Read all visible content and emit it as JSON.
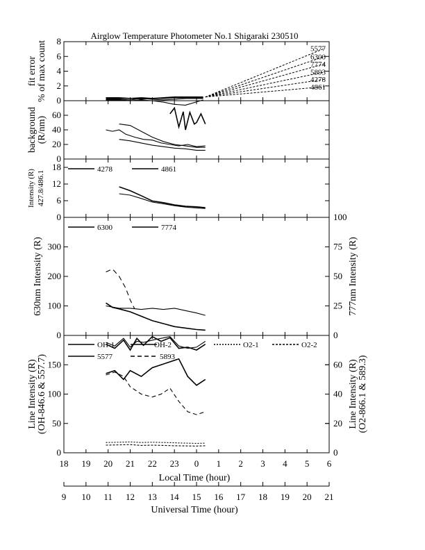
{
  "title": "Airglow Temperature Photometer No.1  Shigaraki  230510",
  "x_axes": {
    "local": {
      "label": "Local Time (hour)",
      "ticks": [
        "18",
        "19",
        "20",
        "21",
        "22",
        "23",
        "0",
        "1",
        "2",
        "3",
        "4",
        "5",
        "6"
      ]
    },
    "universal": {
      "label": "Universal Time (hour)",
      "ticks": [
        "9",
        "10",
        "11",
        "12",
        "13",
        "14",
        "15",
        "16",
        "17",
        "18",
        "19",
        "20",
        "21"
      ]
    }
  },
  "chart_data": [
    {
      "type": "line",
      "panel": "fit-error",
      "ylabel": [
        "fit error",
        "% of max count"
      ],
      "ylim": [
        0,
        8
      ],
      "yticks": [
        "0",
        "2",
        "4",
        "6",
        "8"
      ],
      "xlim_local": [
        18,
        30
      ],
      "annotations": [
        "5577",
        "6300",
        "7774",
        "5893",
        "4278",
        "4861"
      ],
      "extrapolation_targets": [
        {
          "name": "5577",
          "x": 29.8,
          "y": 7.1
        },
        {
          "name": "6300",
          "x": 29.8,
          "y": 6.0
        },
        {
          "name": "7774",
          "x": 29.8,
          "y": 5.0
        },
        {
          "name": "5893",
          "x": 29.8,
          "y": 3.9
        },
        {
          "name": "4278",
          "x": 29.8,
          "y": 2.9
        },
        {
          "name": "4861",
          "x": 29.8,
          "y": 1.9
        }
      ],
      "series": [
        {
          "x": [
            19.9,
            20.5,
            21.0,
            21.5,
            22.0,
            22.5,
            23.0,
            23.5,
            24.3
          ],
          "y": [
            0.4,
            0.4,
            0.3,
            0.4,
            0.3,
            0.4,
            0.5,
            0.5,
            0.5
          ]
        },
        {
          "x": [
            19.9,
            20.5,
            21.0,
            21.5,
            22.0,
            22.5,
            23.0,
            23.5,
            24.3
          ],
          "y": [
            0.2,
            0.2,
            0.1,
            0.3,
            0.2,
            0.1,
            0.2,
            0.3,
            0.3
          ]
        },
        {
          "x": [
            19.9,
            20.5,
            21.0,
            21.5,
            22.0,
            22.5,
            23.0,
            23.5,
            24.3
          ],
          "y": [
            0.1,
            0.1,
            0.0,
            0.1,
            0.0,
            -0.2,
            -0.5,
            -0.6,
            0.1
          ]
        },
        {
          "x": [
            19.9,
            20.5,
            21.0,
            21.5,
            22.0,
            22.5,
            23.0,
            23.5,
            24.3
          ],
          "y": [
            0.3,
            0.3,
            0.3,
            0.2,
            0.3,
            0.3,
            0.4,
            0.4,
            0.4
          ]
        }
      ]
    },
    {
      "type": "line",
      "panel": "background",
      "ylabel": [
        "background",
        "(R/nm)"
      ],
      "ylim": [
        0,
        80
      ],
      "yticks": [
        "0",
        "20",
        "40",
        "60"
      ],
      "series": [
        {
          "x": [
            22.8,
            23.0,
            23.2,
            23.4,
            23.5,
            23.7,
            23.9,
            24.0,
            24.2,
            24.4
          ],
          "y": [
            62,
            70,
            44,
            65,
            40,
            64,
            48,
            50,
            62,
            48
          ]
        },
        {
          "x": [
            19.9,
            20.2,
            20.5,
            20.8,
            21.2,
            21.6,
            22.0,
            22.4,
            22.8,
            23.2,
            23.6,
            24.0,
            24.4
          ],
          "y": [
            40,
            38,
            40,
            34,
            30,
            27,
            26,
            22,
            20,
            18,
            20,
            17,
            18
          ]
        },
        {
          "x": [
            20.5,
            21.0,
            21.5,
            22.0,
            22.5,
            23.0,
            23.5,
            24.0,
            24.4
          ],
          "y": [
            48,
            46,
            38,
            30,
            24,
            20,
            18,
            16,
            16
          ]
        },
        {
          "x": [
            20.5,
            21.0,
            21.5,
            22.0,
            22.5,
            23.0,
            23.5,
            24.0,
            24.4
          ],
          "y": [
            27,
            25,
            22,
            19,
            17,
            15,
            14,
            12,
            12
          ]
        }
      ]
    },
    {
      "type": "line",
      "panel": "427.8/486.1",
      "ylabel": [
        "Intensity (R)",
        "427.8/486.1"
      ],
      "ylim": [
        0,
        21
      ],
      "yticks": [
        "0",
        "6",
        "12",
        "18"
      ],
      "legend": [
        "4278",
        "4861"
      ],
      "series": [
        {
          "name": "4278",
          "x": [
            20.5,
            21.0,
            21.5,
            22.0,
            22.5,
            23.0,
            23.5,
            24.0,
            24.4
          ],
          "y": [
            11,
            9.6,
            7.8,
            5.9,
            5.3,
            4.5,
            4.0,
            3.8,
            3.5
          ]
        },
        {
          "name": "4861",
          "x": [
            20.5,
            21.0,
            21.5,
            22.0,
            22.5,
            23.0,
            23.5,
            24.0,
            24.4
          ],
          "y": [
            8.5,
            8.0,
            6.8,
            5.5,
            4.9,
            4.2,
            3.7,
            3.4,
            3.2
          ]
        }
      ]
    },
    {
      "type": "line",
      "panel": "630/777",
      "ylabel": "630nm Intensity (R)",
      "ylabel_right": "777nm Intensity (R)",
      "ylim": [
        0,
        400
      ],
      "ylim_right": [
        0,
        100
      ],
      "yticks": [
        "0",
        "100",
        "200",
        "300"
      ],
      "yticks_right": [
        "0",
        "25",
        "50",
        "75",
        "100"
      ],
      "legend": [
        "6300",
        "7774"
      ],
      "series": [
        {
          "name": "6300",
          "x": [
            19.9,
            20.2,
            20.5,
            21.0,
            21.5,
            22.0,
            22.5,
            23.0,
            23.5,
            24.0,
            24.4
          ],
          "y": [
            110,
            95,
            90,
            80,
            65,
            50,
            40,
            30,
            25,
            20,
            18
          ]
        },
        {
          "name": "7774",
          "x": [
            19.9,
            20.2,
            20.5,
            21.0,
            21.5,
            22.0,
            22.5,
            23.0,
            23.5,
            24.0,
            24.4
          ],
          "y": [
            25,
            24,
            23,
            23,
            22,
            23,
            22,
            23,
            21,
            19,
            17
          ]
        },
        {
          "name": "dashed",
          "x": [
            19.9,
            20.2,
            20.5,
            20.8,
            21.0,
            21.2
          ],
          "y": [
            215,
            225,
            200,
            160,
            120,
            90
          ]
        }
      ]
    },
    {
      "type": "line",
      "panel": "line-intensity",
      "ylabel": [
        "Line Intensity (R)",
        "(OH-846.6 & 557.7)"
      ],
      "ylabel_right": [
        "Line Intensity (R)",
        "(O2-866.1 & 589.3)"
      ],
      "ylim": [
        0,
        200
      ],
      "ylim_right": [
        0,
        80
      ],
      "yticks": [
        "0",
        "50",
        "100",
        "150"
      ],
      "yticks_right": [
        "0",
        "20",
        "40",
        "60"
      ],
      "legend": [
        "OH-1",
        "OH-2",
        "O2-1",
        "O2-2",
        "5577",
        "5893"
      ],
      "series": [
        {
          "name": "OH-1",
          "x": [
            19.9,
            20.3,
            20.7,
            21.0,
            21.3,
            21.6,
            22.0,
            22.4,
            22.8,
            23.2,
            23.6,
            24.0,
            24.4
          ],
          "y": [
            185,
            178,
            192,
            175,
            195,
            183,
            198,
            190,
            196,
            178,
            180,
            175,
            185
          ]
        },
        {
          "name": "OH-2",
          "x": [
            19.9,
            20.3,
            20.7,
            21.0,
            21.3,
            21.6,
            22.0,
            22.4,
            22.8,
            23.2,
            23.6,
            24.0,
            24.4
          ],
          "y": [
            188,
            182,
            195,
            180,
            190,
            188,
            192,
            195,
            198,
            182,
            178,
            180,
            190
          ]
        },
        {
          "name": "5577",
          "x": [
            19.9,
            20.3,
            20.7,
            21.0,
            21.5,
            22.0,
            22.4,
            22.8,
            23.2,
            23.6,
            24.0,
            24.4
          ],
          "y": [
            135,
            140,
            125,
            140,
            130,
            145,
            150,
            155,
            160,
            130,
            115,
            125
          ]
        },
        {
          "name": "5893",
          "x": [
            19.9,
            20.3,
            20.7,
            21.0,
            21.5,
            22.0,
            22.4,
            22.8,
            23.2,
            23.6,
            24.0,
            24.4
          ],
          "y": [
            53,
            55,
            52,
            45,
            40,
            38,
            40,
            44,
            35,
            28,
            26,
            28
          ]
        },
        {
          "name": "O2-1",
          "x": [
            19.9,
            20.5,
            21.0,
            21.5,
            22.0,
            22.5,
            23.0,
            23.5,
            24.0,
            24.4
          ],
          "y": [
            7.0,
            7.2,
            7.4,
            7.0,
            7.2,
            7.0,
            6.8,
            6.6,
            6.4,
            6.6
          ]
        },
        {
          "name": "O2-2",
          "x": [
            19.9,
            20.5,
            21.0,
            21.5,
            22.0,
            22.5,
            23.0,
            23.5,
            24.0,
            24.4
          ],
          "y": [
            5.2,
            5.4,
            5.6,
            5.0,
            5.2,
            5.0,
            4.8,
            4.7,
            4.6,
            4.8
          ]
        }
      ]
    }
  ]
}
